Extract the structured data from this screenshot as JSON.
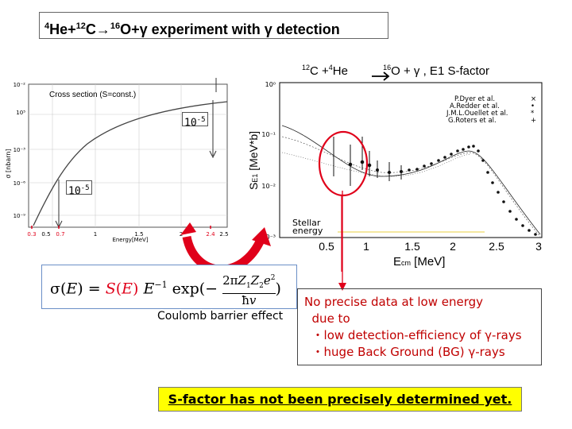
{
  "title": {
    "sup1": "4",
    "part1": "He+",
    "sup2": "12",
    "part2": "C→",
    "sup3": "16",
    "part3": "O+γ experiment with γ  detection"
  },
  "left_plot": {
    "label": "Cross section (S=const.)",
    "ylabel": "σ [nbarn]",
    "xlabel": "Energy[MeV]",
    "y_ticks": [
      "10⁻²",
      "10⁵",
      "10⁻³",
      "10⁻⁶",
      "10⁻⁹"
    ],
    "x_ticks": [
      "0.3",
      "0.5",
      "0.7",
      "1",
      "1.5",
      "2",
      "2.4",
      "2.5"
    ],
    "red_ticks": [
      "0.3",
      "0.7",
      "2.4"
    ],
    "box_top": {
      "base": "10",
      "exp": "-5"
    },
    "box_left": {
      "base": "10",
      "exp": "-5"
    }
  },
  "right_plot": {
    "title_parts": {
      "s1": "12",
      "t1": "C +",
      "s2": "4",
      "t2": "He",
      "s3": "16",
      "t3": "O + γ , E1 S-factor"
    },
    "ylabel": "S",
    "ylabel_sub": "E1",
    "ylabel_unit": " [MeV*b]",
    "xlabel": "E",
    "xlabel_sub": "cm",
    "xlabel_unit": " [MeV]",
    "y_ticks": [
      "10⁰",
      "10⁻¹",
      "10⁻²",
      "10⁻³"
    ],
    "x_ticks": [
      "0.5",
      "1",
      "1.5",
      "2",
      "2.5",
      "3"
    ],
    "legend": [
      "P.Dyer et al.",
      "A.Redder et al.",
      "J.M.L.Ouellet et al.",
      "G.Roters et al."
    ],
    "stellar": [
      "Stellar",
      "energy"
    ]
  },
  "formula_label": "Coulomb barrier effect",
  "note": {
    "lines": [
      "No precise data at low energy",
      "  due to",
      "  ・low detection-efficiency of γ-rays",
      "  ・huge Back Ground (BG) γ-rays"
    ]
  },
  "conclusion": "S-factor has not been precisely determined yet.",
  "colors": {
    "red": "#e0001a",
    "ellipse": "#e0001a",
    "stellar_line": "#f0e080",
    "formula_border": "#6b8fc7",
    "highlight": "#ffff00"
  }
}
